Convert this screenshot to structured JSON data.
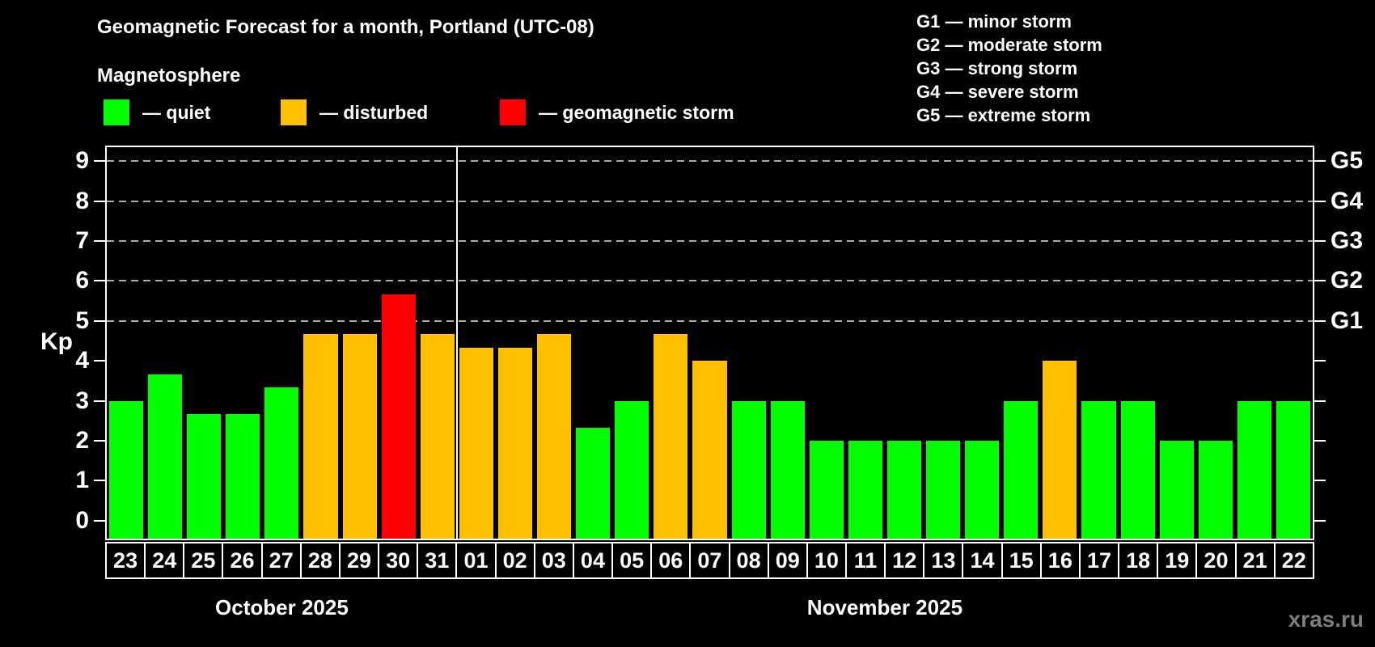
{
  "title": "Geomagnetic Forecast for a month, Portland (UTC-08)",
  "subtitle": "Magnetosphere",
  "magnetosphere_legend": [
    {
      "key": "quiet",
      "label": "— quiet",
      "color": "#00ff00"
    },
    {
      "key": "disturbed",
      "label": "— disturbed",
      "color": "#ffc000"
    },
    {
      "key": "storm",
      "label": "— geomagnetic storm",
      "color": "#ff0000"
    }
  ],
  "storm_scale_legend": [
    "G1 — minor storm",
    "G2 — moderate storm",
    "G3 — strong storm",
    "G4 — severe storm",
    "G5 — extreme storm"
  ],
  "watermark": "xras.ru",
  "chart_data": {
    "type": "bar",
    "title": "Geomagnetic Forecast for a month, Portland (UTC-08)",
    "ylabel": "Kp",
    "xlabel": "",
    "ylim": [
      -0.45,
      9.35
    ],
    "grid": "dashed horizontal lines at Kp 5,6,7,8,9",
    "grid_kp_levels": [
      5,
      6,
      7,
      8,
      9
    ],
    "left_ticks": [
      0,
      1,
      2,
      3,
      4,
      5,
      6,
      7,
      8,
      9
    ],
    "right_axis_labels": [
      {
        "kp": 5,
        "label": "G1"
      },
      {
        "kp": 6,
        "label": "G2"
      },
      {
        "kp": 7,
        "label": "G3"
      },
      {
        "kp": 8,
        "label": "G4"
      },
      {
        "kp": 9,
        "label": "G5"
      }
    ],
    "months": [
      {
        "label": "October 2025",
        "days": 9
      },
      {
        "label": "November 2025",
        "days": 22
      }
    ],
    "categories": [
      "23",
      "24",
      "25",
      "26",
      "27",
      "28",
      "29",
      "30",
      "31",
      "01",
      "02",
      "03",
      "04",
      "05",
      "06",
      "07",
      "08",
      "09",
      "10",
      "11",
      "12",
      "13",
      "14",
      "15",
      "16",
      "17",
      "18",
      "19",
      "20",
      "21",
      "22"
    ],
    "values": [
      3.0,
      3.67,
      2.67,
      2.67,
      3.33,
      4.67,
      4.67,
      5.67,
      4.67,
      4.33,
      4.33,
      4.67,
      2.33,
      3.0,
      4.67,
      4.0,
      3.0,
      3.0,
      2.0,
      2.0,
      2.0,
      2.0,
      2.0,
      3.0,
      4.0,
      3.0,
      3.0,
      2.0,
      2.0,
      3.0,
      3.0
    ],
    "statuses": [
      "quiet",
      "quiet",
      "quiet",
      "quiet",
      "quiet",
      "disturbed",
      "disturbed",
      "storm",
      "disturbed",
      "disturbed",
      "disturbed",
      "disturbed",
      "quiet",
      "quiet",
      "disturbed",
      "disturbed",
      "quiet",
      "quiet",
      "quiet",
      "quiet",
      "quiet",
      "quiet",
      "quiet",
      "quiet",
      "disturbed",
      "quiet",
      "quiet",
      "quiet",
      "quiet",
      "quiet",
      "quiet"
    ],
    "colors": {
      "quiet": "#00ff00",
      "disturbed": "#ffc000",
      "storm": "#ff0000"
    }
  }
}
